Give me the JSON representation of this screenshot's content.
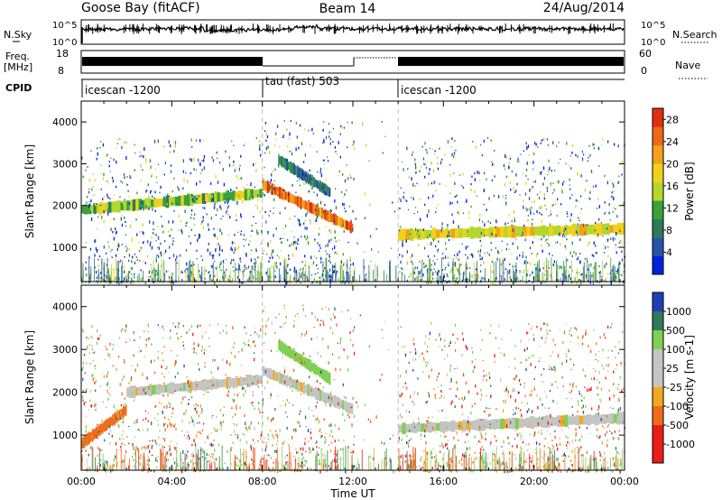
{
  "header": {
    "station": "Goose Bay (fitACF)",
    "beam": "Beam 14",
    "date": "24/Aug/2014"
  },
  "aux_panels": {
    "nsky": {
      "label": "N.Sky",
      "ticks": [
        "10^5",
        "10^0"
      ]
    },
    "nsearch": {
      "label": "N.Search",
      "ticks": [
        "10^5",
        "10^0"
      ]
    },
    "freq": {
      "label_line1": "Freq.",
      "label_line2": "[MHz]",
      "ticks": [
        "18",
        "8"
      ]
    },
    "nave": {
      "label": "Nave",
      "ticks": [
        "60",
        "0"
      ]
    },
    "cpid": {
      "label": "CPID",
      "segments": [
        "icescan -1200",
        "tau (fast) 503",
        "icescan -1200"
      ]
    }
  },
  "chart_data": [
    {
      "type": "heatmap",
      "parameter": "Power",
      "ylabel": "Slant Range [km]",
      "xlabel": "Time UT",
      "xlim": [
        "00:00",
        "24:00"
      ],
      "x_ticks": [
        "00:00",
        "04:00",
        "08:00",
        "12:00",
        "16:00",
        "20:00",
        "00:00"
      ],
      "ylim": [
        180,
        4500
      ],
      "y_ticks": [
        1000,
        2000,
        3000,
        4000
      ],
      "colorbar": {
        "label": "Power [dB]",
        "ticks": [
          "28",
          "24",
          "20",
          "16",
          "12",
          "8",
          "4"
        ],
        "range": [
          0,
          30
        ]
      },
      "features": [
        {
          "name": "broad echo band",
          "t_start_h": 0.0,
          "t_end_h": 8.0,
          "range_start_km": 1900,
          "range_end_km": 2300,
          "power_db": 14
        },
        {
          "name": "descending echo band",
          "t_start_h": 8.0,
          "t_end_h": 12.0,
          "range_start_km": 2500,
          "range_end_km": 1450,
          "power_db": 24
        },
        {
          "name": "upper descending band",
          "t_start_h": 8.7,
          "t_end_h": 11.0,
          "range_start_km": 3100,
          "range_end_km": 2300,
          "power_db": 8
        },
        {
          "name": "flat echo band",
          "t_start_h": 14.0,
          "t_end_h": 24.0,
          "range_start_km": 1300,
          "range_end_km": 1450,
          "power_db": 18
        }
      ]
    },
    {
      "type": "heatmap",
      "parameter": "Velocity",
      "ylabel": "Slant Range [km]",
      "xlabel": "Time UT",
      "xlim": [
        "00:00",
        "24:00"
      ],
      "x_ticks": [
        "00:00",
        "04:00",
        "08:00",
        "12:00",
        "16:00",
        "20:00",
        "00:00"
      ],
      "ylim": [
        180,
        4500
      ],
      "y_ticks": [
        1000,
        2000,
        3000,
        4000
      ],
      "colorbar": {
        "label": "Velocity [m s-1]",
        "ticks": [
          "1000",
          "500",
          "100",
          "25",
          "-25",
          "-100",
          "-500",
          "-1000"
        ],
        "range": [
          -1000,
          1000
        ]
      },
      "features": [
        {
          "name": "ground scatter band",
          "t_start_h": 2.0,
          "t_end_h": 8.0,
          "range_start_km": 2000,
          "range_end_km": 2300,
          "velocity_ms": 0
        },
        {
          "name": "descending ground scatter",
          "t_start_h": 8.0,
          "t_end_h": 12.0,
          "range_start_km": 2500,
          "range_end_km": 1600,
          "velocity_ms": 0
        },
        {
          "name": "green ionospheric band",
          "t_start_h": 8.7,
          "t_end_h": 11.0,
          "range_start_km": 3100,
          "range_end_km": 2300,
          "velocity_ms": 150
        },
        {
          "name": "flat ground scatter",
          "t_start_h": 14.0,
          "t_end_h": 24.0,
          "range_start_km": 1150,
          "range_end_km": 1400,
          "velocity_ms": 0
        },
        {
          "name": "early mixed patch",
          "t_start_h": 0.0,
          "t_end_h": 2.0,
          "range_start_km": 800,
          "range_end_km": 1600,
          "velocity_ms": -150
        }
      ]
    }
  ],
  "colors": {
    "power_scale": [
      "#0022dd",
      "#2a52a8",
      "#2f7a58",
      "#3aa23a",
      "#b5d62c",
      "#f1d21a",
      "#f2a11a",
      "#ee6a12",
      "#e03010"
    ],
    "velocity_scale": [
      "#ea1e16",
      "#f06c1a",
      "#f4a81e",
      "#c4c4c2",
      "#7fd055",
      "#2f7a58",
      "#1f3fb4"
    ]
  }
}
